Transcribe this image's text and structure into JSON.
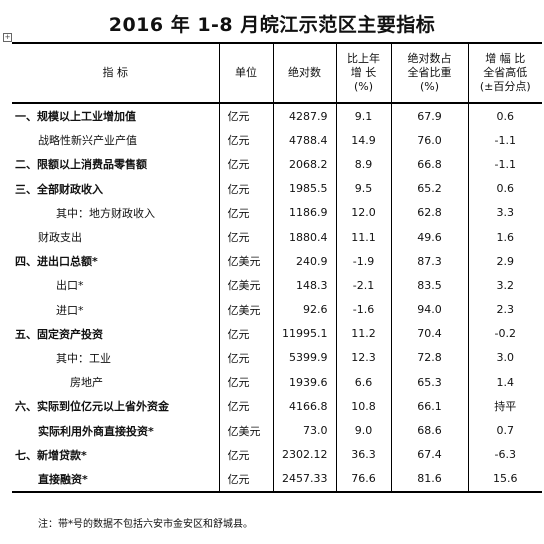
{
  "title": "2016 年 1-8 月皖江示范区主要指标",
  "headers": {
    "indicator": "指 标",
    "unit": "单位",
    "absolute": "绝对数",
    "yoy_line1": "比上年",
    "yoy_line2": "增  长",
    "yoy_line3": "(%)",
    "share_line1": "绝对数占",
    "share_line2": "全省比重",
    "share_line3": "(%)",
    "rate_line1": "增 幅 比",
    "rate_line2": "全省高低",
    "rate_line3": "(±百分点)"
  },
  "rows": [
    {
      "name": "一、规模以上工业增加值",
      "unit": "亿元",
      "value": "4287.9",
      "growth": "9.1",
      "share": "67.9",
      "diff": "0.6"
    },
    {
      "name": "战略性新兴产业产值",
      "unit": "亿元",
      "value": "4788.4",
      "growth": "14.9",
      "share": "76.0",
      "diff": "-1.1"
    },
    {
      "name": "二、限额以上消费品零售额",
      "unit": "亿元",
      "value": "2068.2",
      "growth": "8.9",
      "share": "66.8",
      "diff": "-1.1"
    },
    {
      "name": "三、全部财政收入",
      "unit": "亿元",
      "value": "1985.5",
      "growth": "9.5",
      "share": "65.2",
      "diff": "0.6"
    },
    {
      "name": "其中：地方财政收入",
      "unit": "亿元",
      "value": "1186.9",
      "growth": "12.0",
      "share": "62.8",
      "diff": "3.3"
    },
    {
      "name": "财政支出",
      "unit": "亿元",
      "value": "1880.4",
      "growth": "11.1",
      "share": "49.6",
      "diff": "1.6"
    },
    {
      "name": "四、进出口总额*",
      "unit": "亿美元",
      "value": "240.9",
      "growth": "-1.9",
      "share": "87.3",
      "diff": "2.9"
    },
    {
      "name": "出口*",
      "unit": "亿美元",
      "value": "148.3",
      "growth": "-2.1",
      "share": "83.5",
      "diff": "3.2"
    },
    {
      "name": "进口*",
      "unit": "亿美元",
      "value": "92.6",
      "growth": "-1.6",
      "share": "94.0",
      "diff": "2.3"
    },
    {
      "name": "五、固定资产投资",
      "unit": "亿元",
      "value": "11995.1",
      "growth": "11.2",
      "share": "70.4",
      "diff": "-0.2"
    },
    {
      "name": "其中：工业",
      "unit": "亿元",
      "value": "5399.9",
      "growth": "12.3",
      "share": "72.8",
      "diff": "3.0"
    },
    {
      "name": "房地产",
      "unit": "亿元",
      "value": "1939.6",
      "growth": "6.6",
      "share": "65.3",
      "diff": "1.4"
    },
    {
      "name": "六、实际到位亿元以上省外资金",
      "unit": "亿元",
      "value": "4166.8",
      "growth": "10.8",
      "share": "66.1",
      "diff": "持平"
    },
    {
      "name": "实际利用外商直接投资*",
      "unit": "亿美元",
      "value": "73.0",
      "growth": "9.0",
      "share": "68.6",
      "diff": "0.7"
    },
    {
      "name": "七、新增贷款*",
      "unit": "亿元",
      "value": "2302.12",
      "growth": "36.3",
      "share": "67.4",
      "diff": "-6.3"
    },
    {
      "name": "直接融资*",
      "unit": "亿元",
      "value": "2457.33",
      "growth": "76.6",
      "share": "81.6",
      "diff": "15.6"
    }
  ],
  "note": "注：带*号的数据不包括六安市金安区和舒城县。"
}
